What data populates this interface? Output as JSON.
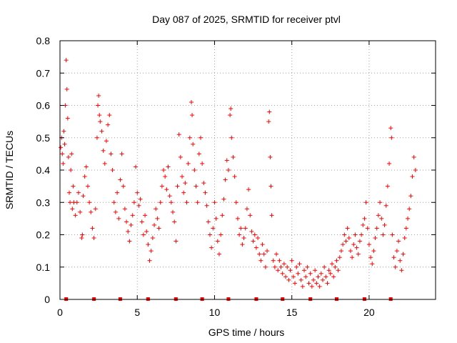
{
  "chart_data": {
    "type": "scatter",
    "title": "Day 087 of 2025, SRMTID for receiver ptvl",
    "xlabel": "GPS time / hours",
    "ylabel": "SRMTID / TECUs",
    "xlim": [
      0,
      24.3
    ],
    "ylim": [
      0,
      0.8
    ],
    "x_ticks": [
      0,
      5,
      10,
      15,
      20
    ],
    "x_tick_labels": [
      "0",
      "5",
      "10",
      "15",
      "20"
    ],
    "y_ticks": [
      0,
      0.1,
      0.2,
      0.3,
      0.4,
      0.5,
      0.6,
      0.7,
      0.8
    ],
    "y_tick_labels": [
      "0",
      "0.1",
      "0.2",
      "0.3",
      "0.4",
      "0.5",
      "0.6",
      "0.7",
      "0.8"
    ],
    "grid": true,
    "marker": "+",
    "color": "#ff0000",
    "zero_markers_x": [
      0.4,
      2.2,
      3.9,
      5.7,
      7.5,
      9.2,
      10.9,
      12.7,
      14.4,
      16.2,
      17.9,
      19.7,
      21.4
    ],
    "series": [
      {
        "name": "SRMTID",
        "points": [
          [
            0.05,
            0.47
          ],
          [
            0.1,
            0.5
          ],
          [
            0.15,
            0.45
          ],
          [
            0.2,
            0.42
          ],
          [
            0.25,
            0.52
          ],
          [
            0.3,
            0.48
          ],
          [
            0.35,
            0.6
          ],
          [
            0.4,
            0.74
          ],
          [
            0.45,
            0.65
          ],
          [
            0.5,
            0.56
          ],
          [
            0.55,
            0.44
          ],
          [
            0.6,
            0.33
          ],
          [
            0.65,
            0.3
          ],
          [
            0.7,
            0.4
          ],
          [
            0.75,
            0.45
          ],
          [
            0.8,
            0.28
          ],
          [
            0.85,
            0.35
          ],
          [
            0.9,
            0.3
          ],
          [
            1.0,
            0.26
          ],
          [
            1.1,
            0.3
          ],
          [
            1.2,
            0.33
          ],
          [
            1.3,
            0.27
          ],
          [
            1.4,
            0.19
          ],
          [
            1.45,
            0.2
          ],
          [
            1.5,
            0.32
          ],
          [
            1.6,
            0.38
          ],
          [
            1.7,
            0.41
          ],
          [
            1.8,
            0.35
          ],
          [
            1.9,
            0.3
          ],
          [
            2.0,
            0.27
          ],
          [
            2.1,
            0.22
          ],
          [
            2.2,
            0.19
          ],
          [
            2.3,
            0.28
          ],
          [
            2.4,
            0.5
          ],
          [
            2.45,
            0.6
          ],
          [
            2.5,
            0.63
          ],
          [
            2.55,
            0.57
          ],
          [
            2.6,
            0.55
          ],
          [
            2.7,
            0.52
          ],
          [
            2.8,
            0.46
          ],
          [
            2.9,
            0.42
          ],
          [
            3.0,
            0.49
          ],
          [
            3.1,
            0.54
          ],
          [
            3.2,
            0.57
          ],
          [
            3.3,
            0.45
          ],
          [
            3.4,
            0.4
          ],
          [
            3.5,
            0.3
          ],
          [
            3.6,
            0.27
          ],
          [
            3.7,
            0.33
          ],
          [
            3.8,
            0.25
          ],
          [
            3.9,
            0.37
          ],
          [
            4.0,
            0.45
          ],
          [
            4.1,
            0.35
          ],
          [
            4.2,
            0.28
          ],
          [
            4.3,
            0.24
          ],
          [
            4.4,
            0.21
          ],
          [
            4.5,
            0.18
          ],
          [
            4.6,
            0.23
          ],
          [
            4.7,
            0.26
          ],
          [
            4.8,
            0.3
          ],
          [
            4.9,
            0.41
          ],
          [
            5.0,
            0.33
          ],
          [
            5.1,
            0.29
          ],
          [
            5.2,
            0.31
          ],
          [
            5.3,
            0.24
          ],
          [
            5.4,
            0.2
          ],
          [
            5.5,
            0.26
          ],
          [
            5.6,
            0.21
          ],
          [
            5.7,
            0.17
          ],
          [
            5.8,
            0.12
          ],
          [
            5.9,
            0.15
          ],
          [
            6.0,
            0.19
          ],
          [
            6.1,
            0.23
          ],
          [
            6.2,
            0.28
          ],
          [
            6.3,
            0.25
          ],
          [
            6.4,
            0.22
          ],
          [
            6.5,
            0.3
          ],
          [
            6.6,
            0.35
          ],
          [
            6.7,
            0.4
          ],
          [
            6.8,
            0.38
          ],
          [
            6.9,
            0.34
          ],
          [
            7.0,
            0.41
          ],
          [
            7.1,
            0.32
          ],
          [
            7.2,
            0.3
          ],
          [
            7.3,
            0.27
          ],
          [
            7.4,
            0.24
          ],
          [
            7.5,
            0.18
          ],
          [
            7.6,
            0.35
          ],
          [
            7.7,
            0.51
          ],
          [
            7.8,
            0.44
          ],
          [
            7.9,
            0.38
          ],
          [
            8.0,
            0.33
          ],
          [
            8.1,
            0.36
          ],
          [
            8.2,
            0.3
          ],
          [
            8.3,
            0.42
          ],
          [
            8.4,
            0.5
          ],
          [
            8.5,
            0.61
          ],
          [
            8.55,
            0.57
          ],
          [
            8.6,
            0.48
          ],
          [
            8.7,
            0.4
          ],
          [
            8.8,
            0.35
          ],
          [
            8.9,
            0.3
          ],
          [
            9.0,
            0.45
          ],
          [
            9.1,
            0.5
          ],
          [
            9.2,
            0.42
          ],
          [
            9.3,
            0.36
          ],
          [
            9.4,
            0.33
          ],
          [
            9.5,
            0.29
          ],
          [
            9.6,
            0.24
          ],
          [
            9.7,
            0.2
          ],
          [
            9.8,
            0.16
          ],
          [
            9.9,
            0.22
          ],
          [
            10.0,
            0.3
          ],
          [
            10.1,
            0.25
          ],
          [
            10.2,
            0.18
          ],
          [
            10.3,
            0.14
          ],
          [
            10.4,
            0.2
          ],
          [
            10.5,
            0.26
          ],
          [
            10.6,
            0.31
          ],
          [
            10.7,
            0.37
          ],
          [
            10.8,
            0.43
          ],
          [
            10.9,
            0.4
          ],
          [
            11.0,
            0.57
          ],
          [
            11.05,
            0.59
          ],
          [
            11.1,
            0.5
          ],
          [
            11.2,
            0.44
          ],
          [
            11.3,
            0.38
          ],
          [
            11.4,
            0.3
          ],
          [
            11.5,
            0.25
          ],
          [
            11.6,
            0.2
          ],
          [
            11.7,
            0.22
          ],
          [
            11.8,
            0.17
          ],
          [
            11.9,
            0.19
          ],
          [
            12.0,
            0.22
          ],
          [
            12.1,
            0.28
          ],
          [
            12.2,
            0.34
          ],
          [
            12.3,
            0.26
          ],
          [
            12.4,
            0.21
          ],
          [
            12.5,
            0.18
          ],
          [
            12.6,
            0.2
          ],
          [
            12.7,
            0.16
          ],
          [
            12.8,
            0.19
          ],
          [
            12.9,
            0.14
          ],
          [
            13.0,
            0.12
          ],
          [
            13.1,
            0.17
          ],
          [
            13.2,
            0.14
          ],
          [
            13.3,
            0.1
          ],
          [
            13.4,
            0.15
          ],
          [
            13.5,
            0.55
          ],
          [
            13.55,
            0.58
          ],
          [
            13.6,
            0.44
          ],
          [
            13.65,
            0.35
          ],
          [
            13.7,
            0.26
          ],
          [
            13.8,
            0.12
          ],
          [
            13.9,
            0.1
          ],
          [
            14.0,
            0.14
          ],
          [
            14.1,
            0.09
          ],
          [
            14.2,
            0.12
          ],
          [
            14.3,
            0.1
          ],
          [
            14.4,
            0.08
          ],
          [
            14.5,
            0.11
          ],
          [
            14.6,
            0.07
          ],
          [
            14.7,
            0.1
          ],
          [
            14.8,
            0.06
          ],
          [
            14.9,
            0.09
          ],
          [
            15.0,
            0.12
          ],
          [
            15.1,
            0.07
          ],
          [
            15.2,
            0.05
          ],
          [
            15.3,
            0.1
          ],
          [
            15.4,
            0.08
          ],
          [
            15.5,
            0.11
          ],
          [
            15.6,
            0.06
          ],
          [
            15.7,
            0.04
          ],
          [
            15.8,
            0.09
          ],
          [
            15.9,
            0.07
          ],
          [
            16.0,
            0.1
          ],
          [
            16.1,
            0.05
          ],
          [
            16.2,
            0.08
          ],
          [
            16.3,
            0.04
          ],
          [
            16.4,
            0.06
          ],
          [
            16.5,
            0.09
          ],
          [
            16.6,
            0.05
          ],
          [
            16.7,
            0.07
          ],
          [
            16.8,
            0.04
          ],
          [
            16.9,
            0.08
          ],
          [
            17.0,
            0.06
          ],
          [
            17.1,
            0.1
          ],
          [
            17.2,
            0.07
          ],
          [
            17.3,
            0.05
          ],
          [
            17.4,
            0.09
          ],
          [
            17.5,
            0.08
          ],
          [
            17.6,
            0.11
          ],
          [
            17.7,
            0.07
          ],
          [
            17.8,
            0.1
          ],
          [
            17.9,
            0.12
          ],
          [
            18.0,
            0.09
          ],
          [
            18.1,
            0.13
          ],
          [
            18.2,
            0.15
          ],
          [
            18.3,
            0.17
          ],
          [
            18.4,
            0.2
          ],
          [
            18.5,
            0.18
          ],
          [
            18.6,
            0.22
          ],
          [
            18.7,
            0.19
          ],
          [
            18.8,
            0.15
          ],
          [
            18.9,
            0.13
          ],
          [
            19.0,
            0.17
          ],
          [
            19.1,
            0.2
          ],
          [
            19.2,
            0.16
          ],
          [
            19.3,
            0.14
          ],
          [
            19.4,
            0.18
          ],
          [
            19.5,
            0.2
          ],
          [
            19.6,
            0.23
          ],
          [
            19.7,
            0.25
          ],
          [
            19.8,
            0.3
          ],
          [
            19.9,
            0.22
          ],
          [
            20.0,
            0.17
          ],
          [
            20.1,
            0.13
          ],
          [
            20.2,
            0.11
          ],
          [
            20.3,
            0.15
          ],
          [
            20.4,
            0.19
          ],
          [
            20.5,
            0.22
          ],
          [
            20.6,
            0.26
          ],
          [
            20.7,
            0.3
          ],
          [
            20.8,
            0.25
          ],
          [
            20.9,
            0.2
          ],
          [
            21.0,
            0.23
          ],
          [
            21.1,
            0.29
          ],
          [
            21.2,
            0.35
          ],
          [
            21.3,
            0.42
          ],
          [
            21.4,
            0.53
          ],
          [
            21.45,
            0.5
          ],
          [
            21.5,
            0.2
          ],
          [
            21.6,
            0.13
          ],
          [
            21.7,
            0.1
          ],
          [
            21.8,
            0.15
          ],
          [
            21.9,
            0.18
          ],
          [
            22.0,
            0.12
          ],
          [
            22.1,
            0.09
          ],
          [
            22.2,
            0.14
          ],
          [
            22.3,
            0.19
          ],
          [
            22.4,
            0.22
          ],
          [
            22.5,
            0.25
          ],
          [
            22.6,
            0.28
          ],
          [
            22.7,
            0.32
          ],
          [
            22.8,
            0.38
          ],
          [
            22.9,
            0.44
          ],
          [
            23.0,
            0.4
          ]
        ]
      }
    ]
  }
}
